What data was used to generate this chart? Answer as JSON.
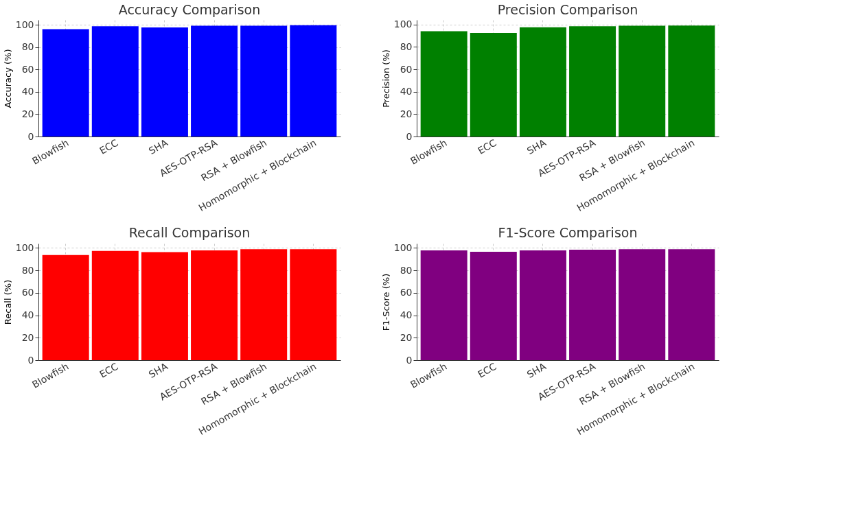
{
  "chart_data": [
    {
      "type": "bar",
      "title": "Accuracy Comparison",
      "ylabel": "Accuracy (%)",
      "categories": [
        "Blowfish",
        "ECC",
        "SHA",
        "AES-OTP-RSA",
        "RSA + Blowfish",
        "Homomorphic + Blockchain"
      ],
      "values": [
        96.3,
        98.9,
        97.8,
        99.3,
        99.4,
        99.8
      ],
      "color": "#0000ff",
      "ylim": [
        0,
        104.6
      ],
      "yticks": [
        0,
        20,
        40,
        60,
        80,
        100
      ],
      "grid": true
    },
    {
      "type": "bar",
      "title": "Precision Comparison",
      "ylabel": "Precision (%)",
      "categories": [
        "Blowfish",
        "ECC",
        "SHA",
        "AES-OTP-RSA",
        "RSA + Blowfish",
        "Homomorphic + Blockchain"
      ],
      "values": [
        94.0,
        92.5,
        97.5,
        98.5,
        98.9,
        99.1
      ],
      "color": "#008000",
      "ylim": [
        0,
        104.1
      ],
      "yticks": [
        0,
        20,
        40,
        60,
        80,
        100
      ],
      "grid": true
    },
    {
      "type": "bar",
      "title": "Recall Comparison",
      "ylabel": "Recall (%)",
      "categories": [
        "Blowfish",
        "ECC",
        "SHA",
        "AES-OTP-RSA",
        "RSA + Blowfish",
        "Homomorphic + Blockchain"
      ],
      "values": [
        93.7,
        97.3,
        96.2,
        97.8,
        98.9,
        98.9
      ],
      "color": "#ff0000",
      "ylim": [
        0,
        103.9
      ],
      "yticks": [
        0,
        20,
        40,
        60,
        80,
        100
      ],
      "grid": true
    },
    {
      "type": "bar",
      "title": "F1-Score Comparison",
      "ylabel": "F1-Score (%)",
      "categories": [
        "Blowfish",
        "ECC",
        "SHA",
        "AES-OTP-RSA",
        "RSA + Blowfish",
        "Homomorphic + Blockchain"
      ],
      "values": [
        97.8,
        96.6,
        97.8,
        98.4,
        98.9,
        98.9
      ],
      "color": "#800080",
      "ylim": [
        0,
        103.9
      ],
      "yticks": [
        0,
        20,
        40,
        60,
        80,
        100
      ],
      "grid": true
    }
  ]
}
